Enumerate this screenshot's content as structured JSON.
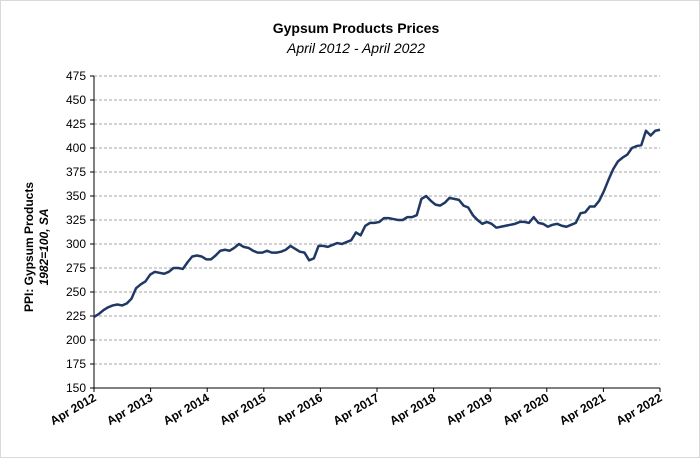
{
  "chart_data": {
    "type": "line",
    "title": "Gypsum Products Prices",
    "subtitle": "April 2012 - April 2022",
    "ylabel_line1": "PPI: Gypsum Products",
    "ylabel_line2": "1982=100, SA",
    "ylim": [
      150,
      475
    ],
    "yticks": [
      "150",
      "175",
      "200",
      "225",
      "250",
      "275",
      "300",
      "325",
      "350",
      "375",
      "400",
      "425",
      "450",
      "475"
    ],
    "xlabels": [
      "Apr 2012",
      "Apr 2013",
      "Apr 2014",
      "Apr 2015",
      "Apr 2016",
      "Apr 2017",
      "Apr 2018",
      "Apr 2019",
      "Apr 2020",
      "Apr 2021",
      "Apr 2022"
    ],
    "grid": true,
    "line_color": "#1f3864",
    "series": [
      {
        "name": "PPI: Gypsum Products",
        "values": [
          224,
          227,
          231,
          234,
          236,
          237,
          236,
          238,
          243,
          254,
          258,
          261,
          268,
          271,
          270,
          269,
          271,
          275,
          275,
          274,
          281,
          287,
          288,
          287,
          284,
          284,
          288,
          293,
          294,
          293,
          296,
          300,
          297,
          296,
          293,
          291,
          291,
          293,
          291,
          291,
          292,
          294,
          298,
          295,
          292,
          291,
          283,
          285,
          298,
          298,
          297,
          299,
          301,
          300,
          302,
          304,
          312,
          309,
          319,
          322,
          322,
          323,
          327,
          327,
          326,
          325,
          325,
          328,
          328,
          330,
          347,
          350,
          345,
          341,
          340,
          343,
          348,
          347,
          346,
          340,
          338,
          330,
          325,
          321,
          323,
          321,
          317,
          318,
          319,
          320,
          321,
          323,
          323,
          322,
          328,
          322,
          321,
          318,
          320,
          321,
          319,
          318,
          320,
          322,
          332,
          333,
          339,
          339,
          345,
          355,
          367,
          378,
          386,
          390,
          393,
          400,
          402,
          403,
          418,
          413,
          418,
          419
        ]
      }
    ]
  }
}
